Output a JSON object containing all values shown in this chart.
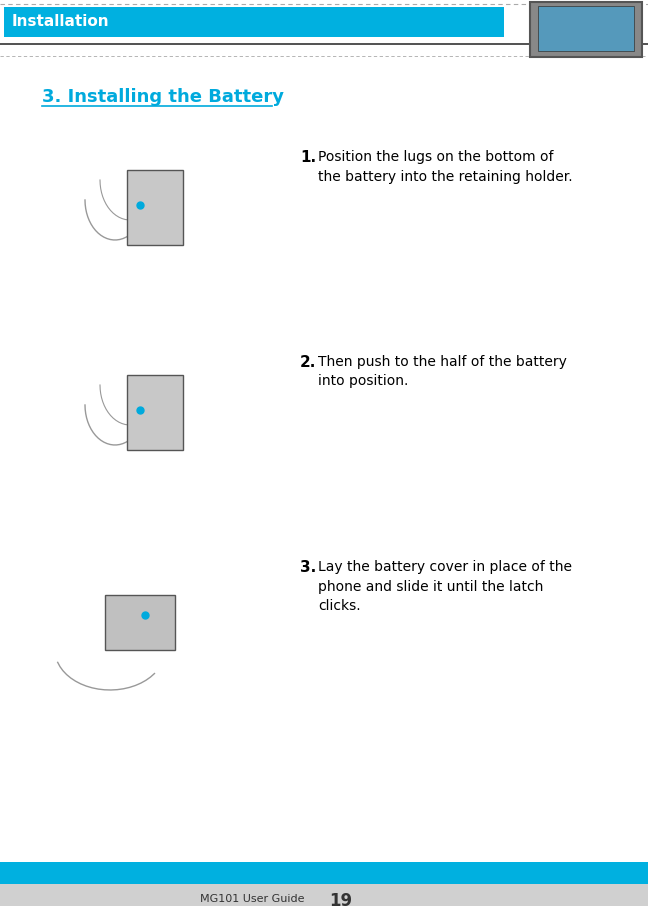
{
  "header_bg_color": "#00b0e0",
  "header_text": "Installation",
  "header_text_color": "#ffffff",
  "header_text_fontsize": 11,
  "page_bg_color": "#f0f0f0",
  "content_bg_color": "#ffffff",
  "dashed_border_color": "#aaaaaa",
  "title": "3. Installing the Battery",
  "title_color": "#00aadd",
  "title_fontsize": 13,
  "steps": [
    {
      "number": "1.",
      "text": "Position the lugs on the bottom of\nthe battery into the retaining holder."
    },
    {
      "number": "2.",
      "text": "Then push to the half of the battery\ninto position."
    },
    {
      "number": "3.",
      "text": "Lay the battery cover in place of the\nphone and slide it until the latch\nclicks."
    }
  ],
  "step_number_fontsize": 11,
  "step_text_fontsize": 10,
  "footer_bg_color": "#00b0e0",
  "footer_text": "MG101 User Guide",
  "footer_page_num": "19",
  "footer_text_fontsize": 8,
  "footer_page_fontsize": 12,
  "footer_text_color": "#333333",
  "bottom_bar_color": "#d0d0d0"
}
